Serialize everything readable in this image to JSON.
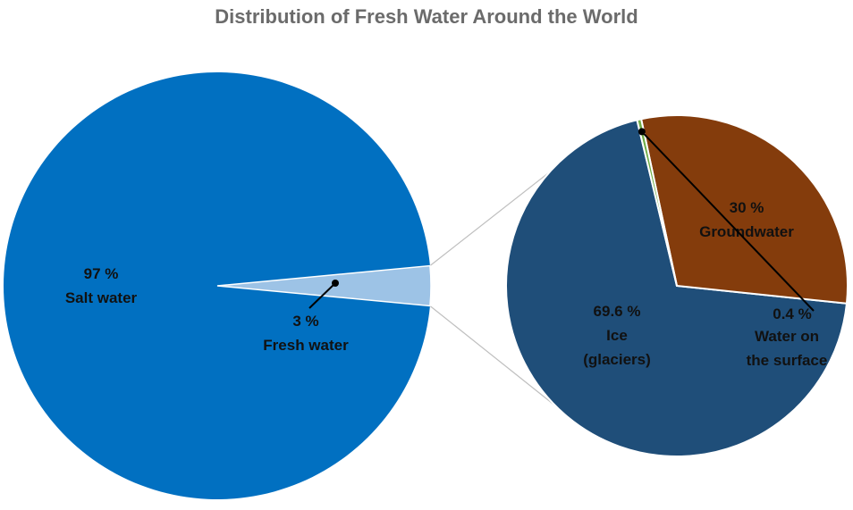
{
  "chart_data": [
    {
      "type": "pie",
      "title": "Distribution of Fresh Water Around the World",
      "slices": [
        {
          "label": "Salt water",
          "value": 97,
          "value_label": "97 %",
          "color": "#0170c1"
        },
        {
          "label": "Fresh water",
          "value": 3,
          "value_label": "3 %",
          "color": "#9dc3e6"
        }
      ]
    },
    {
      "type": "pie",
      "title": "",
      "slices": [
        {
          "label": "Ice (glaciers)",
          "label_lines": [
            "Ice",
            "(glaciers)"
          ],
          "value": 69.6,
          "value_label": "69.6 %",
          "color": "#1f4e79"
        },
        {
          "label": "Groundwater",
          "label_lines": [
            "Groundwater"
          ],
          "value": 30,
          "value_label": "30 %",
          "color": "#843c0c"
        },
        {
          "label": "Water on the surface",
          "label_lines": [
            "Water on",
            "the surface"
          ],
          "value": 0.4,
          "value_label": "0.4 %",
          "color": "#70ad47"
        }
      ]
    }
  ]
}
